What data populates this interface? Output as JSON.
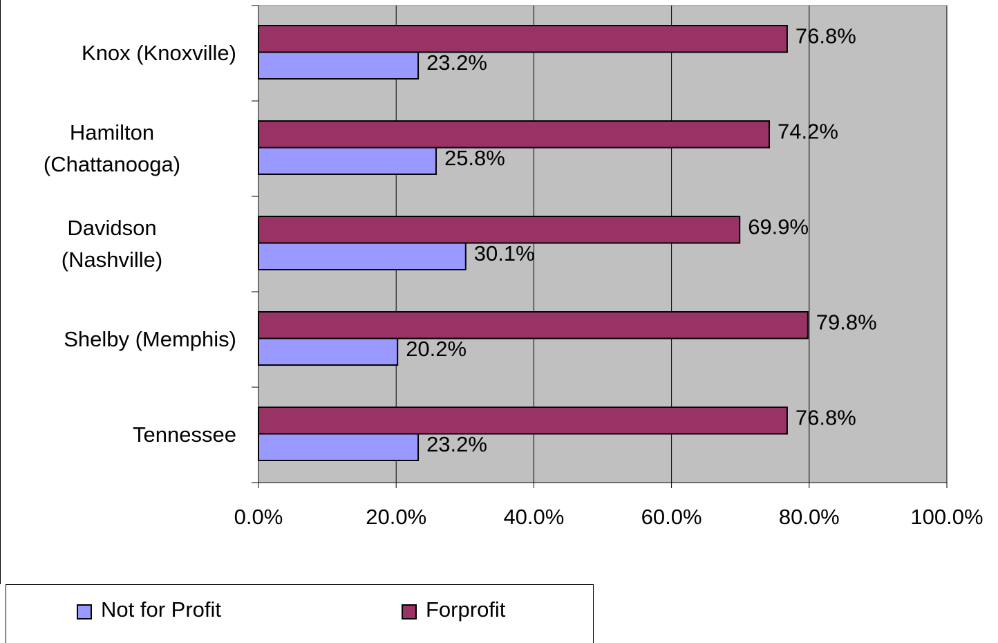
{
  "chart_data": {
    "type": "hbar",
    "categories": [
      "Knox (Knoxville)",
      "Hamilton\n(Chattanooga)",
      "Davidson\n(Nashville)",
      "Shelby (Memphis)",
      "Tennessee"
    ],
    "series": [
      {
        "name": "Not for Profit",
        "color": "#9999ff",
        "values": [
          23.2,
          25.8,
          30.1,
          20.2,
          23.2
        ],
        "value_labels": [
          "23.2%",
          "25.8%",
          "30.1%",
          "20.2%",
          "23.2%"
        ]
      },
      {
        "name": "Forprofit",
        "color": "#993366",
        "values": [
          76.8,
          74.2,
          69.9,
          79.8,
          76.8
        ],
        "value_labels": [
          "76.8%",
          "74.2%",
          "69.9%",
          "79.8%",
          "76.8%"
        ]
      }
    ],
    "xlim": [
      0,
      100
    ],
    "xticks": [
      {
        "value": 0,
        "label": "0.0%"
      },
      {
        "value": 20,
        "label": "20.0%"
      },
      {
        "value": 40,
        "label": "40.0%"
      },
      {
        "value": 60,
        "label": "60.0%"
      },
      {
        "value": 80,
        "label": "80.0%"
      },
      {
        "value": 100,
        "label": "100.0%"
      }
    ],
    "grid": true,
    "legend": "bottom-left",
    "plot_background": "#c0c0c0"
  }
}
